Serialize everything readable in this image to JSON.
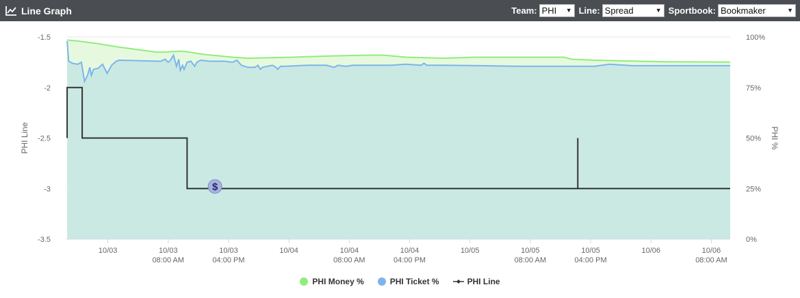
{
  "header": {
    "title": "Line Graph",
    "team_label": "Team:",
    "team_value": "PHI",
    "line_label": "Line:",
    "line_value": "Spread",
    "book_label": "Sportbook:",
    "book_value": "Bookmaker"
  },
  "chart_data": {
    "type": "line",
    "ylabel_left": "PHI Line",
    "ylabel_right": "PHI %",
    "ylim_left": [
      -3.5,
      -1.5
    ],
    "ylim_right": [
      0,
      100
    ],
    "y_ticks_left": [
      "-1.5",
      "-2",
      "-2.5",
      "-3",
      "-3.5"
    ],
    "y_ticks_right": [
      "100%",
      "75%",
      "50%",
      "25%",
      "0%"
    ],
    "x_ticks": [
      {
        "t": 5.5,
        "line1": "10/03",
        "line2": ""
      },
      {
        "t": 13.5,
        "line1": "10/03",
        "line2": "08:00 AM"
      },
      {
        "t": 21.5,
        "line1": "10/03",
        "line2": "04:00 PM"
      },
      {
        "t": 29.5,
        "line1": "10/04",
        "line2": ""
      },
      {
        "t": 37.5,
        "line1": "10/04",
        "line2": "08:00 AM"
      },
      {
        "t": 45.5,
        "line1": "10/04",
        "line2": "04:00 PM"
      },
      {
        "t": 53.5,
        "line1": "10/05",
        "line2": ""
      },
      {
        "t": 61.5,
        "line1": "10/05",
        "line2": "08:00 AM"
      },
      {
        "t": 69.5,
        "line1": "10/05",
        "line2": "04:00 PM"
      },
      {
        "t": 77.5,
        "line1": "10/06",
        "line2": ""
      },
      {
        "t": 85.5,
        "line1": "10/06",
        "line2": "08:00 AM"
      }
    ],
    "series": [
      {
        "name": "PHI Money %",
        "color": "#90ed7d",
        "fill": "#e6f9df",
        "points": [
          [
            0.1,
            98.5
          ],
          [
            1.5,
            98
          ],
          [
            4,
            96.8
          ],
          [
            7,
            95
          ],
          [
            10,
            93.5
          ],
          [
            12,
            92.5
          ],
          [
            13,
            92.5
          ],
          [
            15,
            93
          ],
          [
            16,
            92.7
          ],
          [
            18,
            91.5
          ],
          [
            22,
            90
          ],
          [
            24,
            89.5
          ],
          [
            30,
            90
          ],
          [
            34,
            90.5
          ],
          [
            40,
            91
          ],
          [
            42,
            91
          ],
          [
            45,
            90
          ],
          [
            50,
            89.5
          ],
          [
            54,
            90
          ],
          [
            62,
            90
          ],
          [
            66,
            90
          ],
          [
            67,
            89
          ],
          [
            70,
            88.5
          ],
          [
            76,
            88
          ],
          [
            80,
            87.7
          ],
          [
            88,
            87.6
          ]
        ]
      },
      {
        "name": "PHI Ticket %",
        "color": "#7cb5ec",
        "fill": "#cbe9e3",
        "points": [
          [
            0.1,
            98
          ],
          [
            0.3,
            88
          ],
          [
            0.8,
            87
          ],
          [
            1.5,
            86.5
          ],
          [
            2,
            87.5
          ],
          [
            2.4,
            78
          ],
          [
            2.8,
            81
          ],
          [
            3.1,
            85
          ],
          [
            3.3,
            81
          ],
          [
            3.6,
            84
          ],
          [
            4.2,
            84.5
          ],
          [
            4.8,
            86.5
          ],
          [
            5.4,
            82
          ],
          [
            6,
            86
          ],
          [
            6.6,
            88
          ],
          [
            7,
            88.5
          ],
          [
            10,
            88.2
          ],
          [
            12.5,
            88
          ],
          [
            13.1,
            89
          ],
          [
            13.5,
            87.5
          ],
          [
            13.8,
            88.5
          ],
          [
            14.2,
            91
          ],
          [
            14.6,
            85.5
          ],
          [
            14.9,
            89
          ],
          [
            15.1,
            83.5
          ],
          [
            15.4,
            86
          ],
          [
            15.6,
            84
          ],
          [
            16,
            87.5
          ],
          [
            16.5,
            88
          ],
          [
            17,
            85.5
          ],
          [
            17.3,
            87.5
          ],
          [
            17.8,
            88.5
          ],
          [
            19,
            88
          ],
          [
            21,
            88
          ],
          [
            22,
            87.5
          ],
          [
            22.6,
            88.5
          ],
          [
            23.2,
            86
          ],
          [
            24.1,
            85
          ],
          [
            25,
            85
          ],
          [
            25.4,
            86
          ],
          [
            25.7,
            84
          ],
          [
            26,
            85
          ],
          [
            27.3,
            86
          ],
          [
            27.8,
            85
          ],
          [
            28,
            84
          ],
          [
            28.4,
            85.5
          ],
          [
            29,
            85.5
          ],
          [
            32,
            86
          ],
          [
            34.5,
            86
          ],
          [
            35.5,
            85
          ],
          [
            36,
            86
          ],
          [
            37,
            85.5
          ],
          [
            38,
            86
          ],
          [
            40,
            86
          ],
          [
            43,
            86
          ],
          [
            45,
            86.5
          ],
          [
            47,
            86
          ],
          [
            47.4,
            87
          ],
          [
            47.8,
            86
          ],
          [
            50,
            86
          ],
          [
            55,
            85.8
          ],
          [
            60,
            85.5
          ],
          [
            64,
            85.5
          ],
          [
            70,
            85.5
          ],
          [
            72,
            86.5
          ],
          [
            75,
            85.8
          ],
          [
            80,
            85.8
          ],
          [
            88,
            85.8
          ]
        ]
      }
    ],
    "line_series": {
      "name": "PHI Line",
      "color": "#333333",
      "points": [
        [
          0.1,
          -2.5
        ],
        [
          0.1,
          -2
        ],
        [
          2.1,
          -2
        ],
        [
          2.1,
          -2.5
        ],
        [
          16,
          -2.5
        ],
        [
          16,
          -3
        ],
        [
          67.8,
          -3
        ],
        [
          67.8,
          -2.5
        ],
        [
          67.8,
          -3
        ],
        [
          88,
          -3
        ]
      ]
    },
    "marker": {
      "t": 19.7,
      "value": -3,
      "symbol": "$"
    },
    "xlim": [
      0,
      88
    ]
  },
  "legend": [
    {
      "label": "PHI Money %",
      "color": "#90ed7d",
      "kind": "dot"
    },
    {
      "label": "PHI Ticket %",
      "color": "#7cb5ec",
      "kind": "dot"
    },
    {
      "label": "PHI Line",
      "color": "#333333",
      "kind": "line"
    }
  ]
}
